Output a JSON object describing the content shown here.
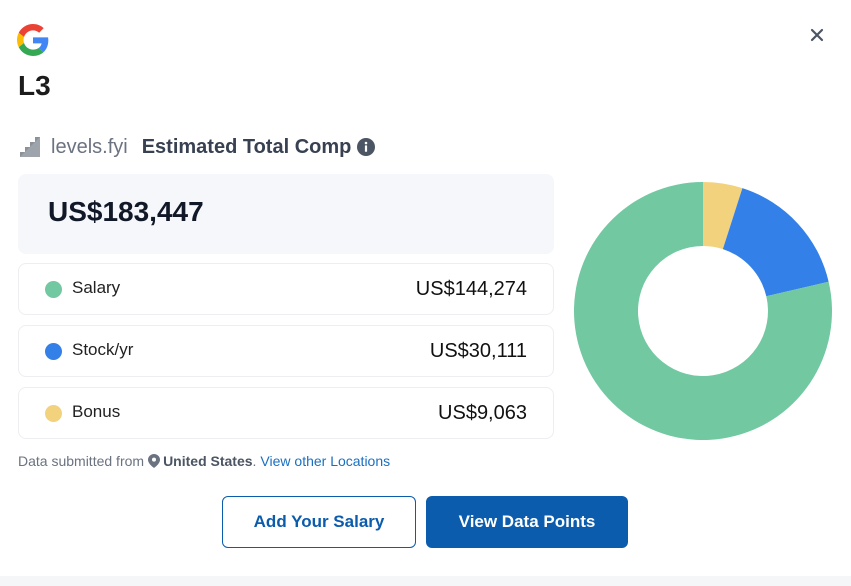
{
  "header": {
    "company_logo_icon": "google-g-icon",
    "title": "L3",
    "close_icon": "close-icon"
  },
  "brand": {
    "icon": "levels-fyi-stairs-icon",
    "name": "levels.fyi",
    "label": "Estimated Total Comp",
    "info_icon": "info-icon"
  },
  "total": {
    "value": "US$183,447"
  },
  "breakdown": [
    {
      "label": "Salary",
      "amount": "US$144,274",
      "color": "#72c8a0",
      "value": 144274
    },
    {
      "label": "Stock/yr",
      "amount": "US$30,111",
      "color": "#3380e8",
      "value": 30111
    },
    {
      "label": "Bonus",
      "amount": "US$9,063",
      "color": "#f2d27c",
      "value": 9063
    }
  ],
  "footnote": {
    "prefix": "Data submitted from",
    "pin_icon": "location-pin-icon",
    "country": "United States",
    "separator": ".",
    "link": "View other Locations"
  },
  "buttons": {
    "add_salary": "Add Your Salary",
    "view_data_points": "View Data Points"
  },
  "chart_data": {
    "type": "pie",
    "donut": true,
    "categories": [
      "Bonus",
      "Stock/yr",
      "Salary"
    ],
    "values": [
      9063,
      30111,
      144274
    ],
    "colors": [
      "#f2d27c",
      "#3380e8",
      "#72c8a0"
    ]
  }
}
